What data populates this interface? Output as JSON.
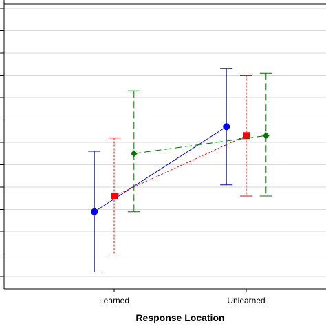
{
  "chart_data": {
    "type": "line",
    "title": "",
    "xlabel": "Response Location",
    "ylabel": "",
    "categories": [
      "Learned",
      "Unlearned"
    ],
    "ylim": [
      0,
      13
    ],
    "grid": true,
    "legend": "none",
    "series": [
      {
        "color": "#0000ff",
        "marker": "circle",
        "line_style": "solid",
        "x_offset": -0.15,
        "values": [
          3.9,
          7.7
        ],
        "err_low": [
          1.2,
          5.1
        ],
        "err_high": [
          6.6,
          10.3
        ]
      },
      {
        "color": "#ff0000",
        "marker": "square",
        "line_style": "dotted",
        "x_offset": 0.0,
        "values": [
          4.6,
          7.3
        ],
        "err_low": [
          2.0,
          4.6
        ],
        "err_high": [
          7.2,
          10.0
        ]
      },
      {
        "color": "#007700",
        "marker": "diamond",
        "line_style": "dashed",
        "x_offset": 0.15,
        "values": [
          6.5,
          7.3
        ],
        "err_low": [
          3.9,
          4.6
        ],
        "err_high": [
          9.3,
          10.1
        ]
      }
    ]
  }
}
